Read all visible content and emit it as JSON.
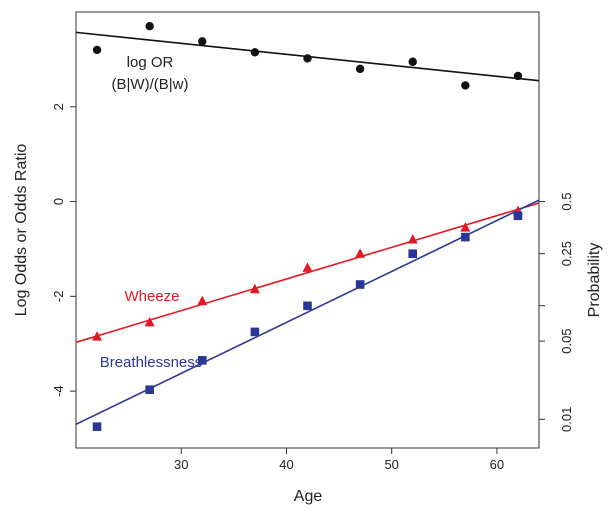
{
  "chart_data": {
    "type": "scatter",
    "xlabel": "Age",
    "ylabel": "Log Odds or Odds Ratio",
    "y2label": "Probability",
    "xlim": [
      20,
      64
    ],
    "ylim": [
      -5.2,
      4.0
    ],
    "x_ticks": [
      30,
      40,
      50,
      60
    ],
    "y_ticks": [
      -4,
      -2,
      0,
      2
    ],
    "y2_ticks": [
      {
        "label": "0.01",
        "value": 0.01
      },
      {
        "label": "0.05",
        "value": 0.05
      },
      {
        "label": "0.25",
        "value": 0.25
      },
      {
        "label": "0.5",
        "value": 0.5
      }
    ],
    "y2_extra_ticks": [
      0.1
    ],
    "series": [
      {
        "name": "log OR",
        "label_lines": [
          "log OR",
          "(B|W)/(B|w)"
        ],
        "marker": "circle",
        "color": "#111111",
        "line_color": "#111111",
        "x": [
          22,
          27,
          32,
          37,
          42,
          47,
          52,
          57,
          62
        ],
        "y": [
          3.2,
          3.7,
          3.38,
          3.15,
          3.02,
          2.8,
          2.95,
          2.45,
          2.65
        ],
        "fit": {
          "x": [
            20,
            64
          ],
          "y": [
            3.57,
            2.55
          ]
        }
      },
      {
        "name": "Wheeze",
        "label_lines": [
          "Wheeze"
        ],
        "marker": "triangle",
        "color": "#e31a24",
        "line_color": "#e31a24",
        "x": [
          22,
          27,
          32,
          37,
          42,
          47,
          52,
          57,
          62
        ],
        "y": [
          -2.85,
          -2.55,
          -2.1,
          -1.85,
          -1.4,
          -1.1,
          -0.8,
          -0.55,
          -0.2
        ],
        "fit": {
          "x": [
            20,
            64
          ],
          "y": [
            -2.97,
            -0.03
          ]
        }
      },
      {
        "name": "Breathlessness",
        "label_lines": [
          "Breathlessness"
        ],
        "marker": "square",
        "color": "#2b3796",
        "line_color": "#2b3796",
        "x": [
          22,
          27,
          32,
          37,
          42,
          47,
          52,
          57,
          62
        ],
        "y": [
          -4.75,
          -3.97,
          -3.35,
          -2.75,
          -2.2,
          -1.75,
          -1.1,
          -0.75,
          -0.3
        ],
        "fit": {
          "x": [
            20,
            64
          ],
          "y": [
            -4.7,
            0.03
          ]
        }
      }
    ]
  }
}
